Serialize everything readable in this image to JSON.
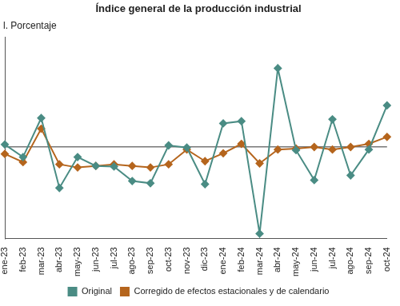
{
  "chart_data": {
    "type": "line",
    "title": "Índice general de la producción industrial",
    "subtitle": "l. Porcentaje",
    "categories": [
      "ene-23",
      "feb-23",
      "mar-23",
      "abr-23",
      "may-23",
      "jun-23",
      "jul-23",
      "ago-23",
      "sep-23",
      "oct-23",
      "nov-23",
      "dic-23",
      "ene-24",
      "feb-24",
      "mar-24",
      "abr-24",
      "may-24",
      "jun-24",
      "jul-24",
      "ago-24",
      "sep-24",
      "oct-24"
    ],
    "series": [
      {
        "name": "Original",
        "color": "#4a8c84",
        "marker": "diamond",
        "values": [
          0.4,
          -1.6,
          4.6,
          -6.5,
          -1.6,
          -3.0,
          -3.1,
          -5.4,
          -5.75,
          0.25,
          -0.1,
          -5.9,
          3.75,
          4.1,
          -13.75,
          12.5,
          -0.5,
          -5.25,
          4.4,
          -4.5,
          -0.4,
          6.6
        ]
      },
      {
        "name": "Corregido de efectos estacionales y de calendario",
        "color": "#b5651d",
        "marker": "diamond",
        "values": [
          -1.1,
          -2.4,
          2.9,
          -2.75,
          -3.25,
          -3.0,
          -2.75,
          -3.0,
          -3.25,
          -2.75,
          -0.4,
          -2.25,
          -1.0,
          0.5,
          -2.6,
          -0.4,
          -0.25,
          0,
          -0.4,
          0,
          0.5,
          1.6
        ]
      }
    ],
    "ylim": [
      -14.5,
      17.5
    ],
    "yticks": [
      0
    ],
    "grid": true,
    "tick_labels": "x",
    "legend": "bottom"
  }
}
